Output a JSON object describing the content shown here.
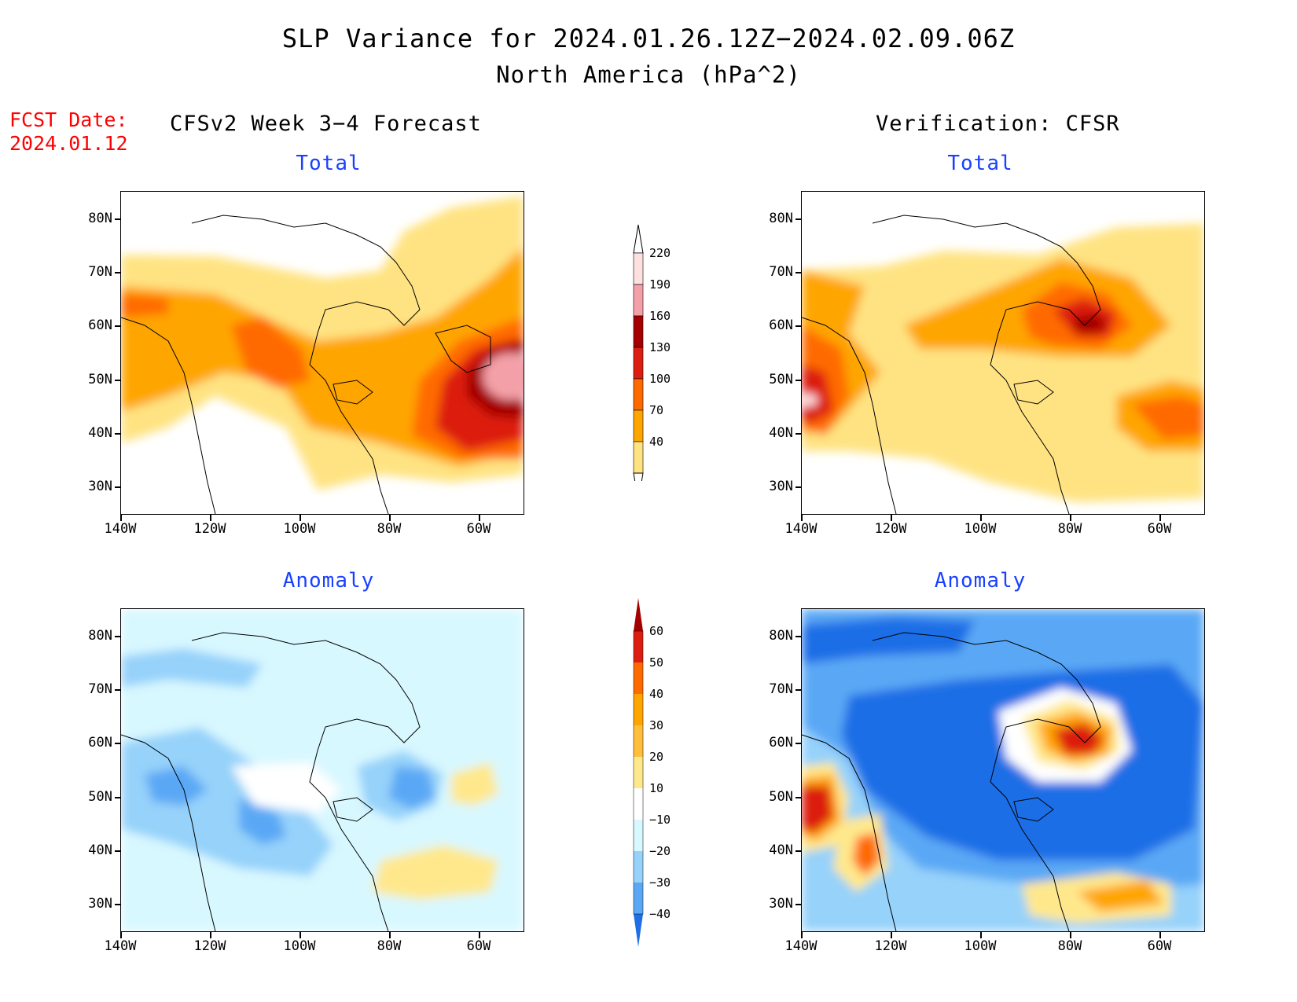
{
  "title": "SLP Variance for 2024.01.26.12Z−2024.02.09.06Z",
  "subtitle": "North America (hPa^2)",
  "fcst_label": "FCST Date:",
  "fcst_date": "2024.01.12",
  "left_column": "CFSv2 Week 3−4 Forecast",
  "right_column": "Verification: CFSR",
  "panels": [
    {
      "title": "Total"
    },
    {
      "title": "Total"
    },
    {
      "title": "Anomaly"
    },
    {
      "title": "Anomaly"
    }
  ],
  "axes": {
    "lat_labels": [
      "80N",
      "70N",
      "60N",
      "50N",
      "40N",
      "30N"
    ],
    "lon_labels": [
      "140W",
      "120W",
      "100W",
      "80W",
      "60W"
    ]
  },
  "colorbars": {
    "total": {
      "levels": [
        "220",
        "190",
        "160",
        "130",
        "100",
        "70",
        "40"
      ],
      "colors": [
        "#ffe0e0",
        "#f4a0a8",
        "#a50000",
        "#dc1e10",
        "#ff6a00",
        "#ffa500",
        "#ffe382"
      ]
    },
    "anomaly": {
      "levels": [
        "60",
        "50",
        "40",
        "30",
        "20",
        "10",
        "−10",
        "−20",
        "−30",
        "−40"
      ],
      "colors": [
        "#a50000",
        "#dc1e10",
        "#ff6a00",
        "#ffa500",
        "#ffbe3c",
        "#ffe88c",
        "#ffffff",
        "#d8f8ff",
        "#96d2fa",
        "#5aa8f5",
        "#1e6ee6"
      ]
    }
  },
  "chart_data": {
    "type": "heatmap",
    "variable": "SLP Variance",
    "units": "hPa^2",
    "domain": {
      "lon": [
        -140,
        -50
      ],
      "lat": [
        25,
        85
      ]
    },
    "panels": [
      {
        "title": "Total",
        "source": "CFSv2 Week 3−4 Forecast",
        "max_region": "near 55W 48N",
        "max_approx": 200
      },
      {
        "title": "Total",
        "source": "Verification: CFSR",
        "max_region": "near 75W 60N",
        "max_approx": 175
      },
      {
        "title": "Anomaly",
        "source": "CFSv2 Week 3−4 Forecast",
        "min_region": "near 75W 52N",
        "min_approx": -35
      },
      {
        "title": "Anomaly",
        "source": "Verification: CFSR",
        "max_region": "near 75W 62N",
        "max_approx": 60
      }
    ]
  }
}
